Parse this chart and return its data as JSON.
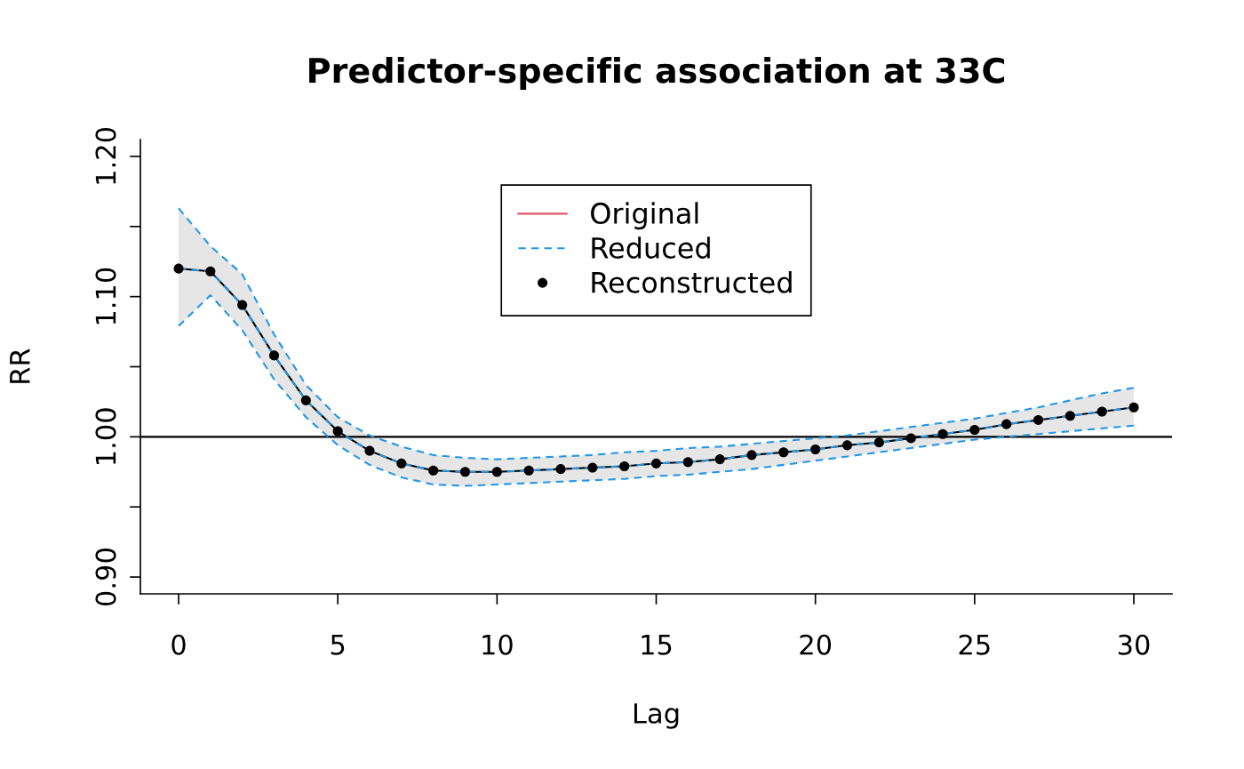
{
  "chart_data": {
    "type": "line",
    "title": "Predictor-specific association at 33C",
    "xlabel": "Lag",
    "ylabel": "RR",
    "x": [
      0,
      1,
      2,
      3,
      4,
      5,
      6,
      7,
      8,
      9,
      10,
      11,
      12,
      13,
      14,
      15,
      16,
      17,
      18,
      19,
      20,
      21,
      22,
      23,
      24,
      25,
      26,
      27,
      28,
      29,
      30
    ],
    "series": [
      {
        "color": "#000000",
        "line_style": "solid",
        "values": [
          1.12,
          1.118,
          1.094,
          1.058,
          1.026,
          1.004,
          0.99,
          0.981,
          0.976,
          0.975,
          0.975,
          0.976,
          0.977,
          0.978,
          0.979,
          0.981,
          0.982,
          0.984,
          0.987,
          0.989,
          0.991,
          0.994,
          0.996,
          0.999,
          1.002,
          1.005,
          1.009,
          1.012,
          1.015,
          1.018,
          1.021
        ],
        "lower": [
          1.079,
          1.101,
          1.076,
          1.041,
          1.014,
          0.994,
          0.98,
          0.971,
          0.966,
          0.965,
          0.966,
          0.967,
          0.968,
          0.969,
          0.97,
          0.972,
          0.973,
          0.975,
          0.977,
          0.98,
          0.983,
          0.986,
          0.989,
          0.992,
          0.995,
          0.998,
          1.0,
          1.002,
          1.004,
          1.006,
          1.008
        ],
        "upper": [
          1.163,
          1.136,
          1.116,
          1.073,
          1.037,
          1.014,
          1.001,
          0.993,
          0.987,
          0.985,
          0.984,
          0.985,
          0.986,
          0.987,
          0.989,
          0.99,
          0.992,
          0.993,
          0.995,
          0.997,
          0.999,
          1.001,
          1.004,
          1.007,
          1.01,
          1.013,
          1.017,
          1.021,
          1.026,
          1.031,
          1.035
        ]
      },
      {
        "name": "Original",
        "color": "#df536b",
        "line_style": "solid",
        "values": [
          null,
          null,
          null,
          null,
          null,
          null,
          null,
          null,
          null,
          null,
          null,
          null,
          null,
          null,
          null,
          null,
          null,
          null,
          null,
          null,
          null,
          null,
          null,
          null,
          null,
          null,
          null,
          null,
          null,
          null,
          null
        ]
      },
      {
        "name": "Reduced",
        "color": "#2297e6",
        "line_style": "dashed",
        "values": [
          1.12,
          1.118,
          1.094,
          1.058,
          1.026,
          1.004,
          0.99,
          0.981,
          0.976,
          0.975,
          0.975,
          0.976,
          0.977,
          0.978,
          0.979,
          0.981,
          0.982,
          0.984,
          0.987,
          0.989,
          0.991,
          0.994,
          0.996,
          0.999,
          1.002,
          1.005,
          1.009,
          1.012,
          1.015,
          1.018,
          1.021
        ]
      },
      {
        "color": "#2297e6",
        "line_style": "dashed",
        "values": [
          1.079,
          1.101,
          1.076,
          1.041,
          1.014,
          0.994,
          0.98,
          0.971,
          0.966,
          0.965,
          0.966,
          0.967,
          0.968,
          0.969,
          0.97,
          0.972,
          0.973,
          0.975,
          0.977,
          0.98,
          0.983,
          0.986,
          0.989,
          0.992,
          0.995,
          0.998,
          1.0,
          1.002,
          1.004,
          1.006,
          1.008
        ]
      },
      {
        "color": "#2297e6",
        "line_style": "dashed",
        "values": [
          1.163,
          1.136,
          1.116,
          1.073,
          1.037,
          1.014,
          1.001,
          0.993,
          0.987,
          0.985,
          0.984,
          0.985,
          0.986,
          0.987,
          0.989,
          0.99,
          0.992,
          0.993,
          0.995,
          0.997,
          0.999,
          1.001,
          1.004,
          1.007,
          1.01,
          1.013,
          1.017,
          1.021,
          1.026,
          1.031,
          1.035
        ]
      },
      {
        "name": "Reconstructed",
        "color": "#000000",
        "type": "scatter",
        "marker": "circle",
        "values": [
          1.12,
          1.118,
          1.094,
          1.058,
          1.026,
          1.004,
          0.99,
          0.981,
          0.976,
          0.975,
          0.975,
          0.976,
          0.977,
          0.978,
          0.979,
          0.981,
          0.982,
          0.984,
          0.987,
          0.989,
          0.991,
          0.994,
          0.996,
          0.999,
          1.002,
          1.005,
          1.009,
          1.012,
          1.015,
          1.018,
          1.021
        ]
      }
    ],
    "ref_lines": [
      {
        "axis": "y",
        "value": 1.0,
        "color": "#000000"
      }
    ],
    "xlim": [
      -1.2,
      31.2
    ],
    "xticks": [
      0,
      5,
      10,
      15,
      20,
      25,
      30
    ],
    "ylim": [
      0.888,
      1.212
    ],
    "yticks": [
      {
        "value": 0.9,
        "label": "0.90"
      },
      {
        "value": 0.95,
        "label": null
      },
      {
        "value": 1.0,
        "label": "1.00"
      },
      {
        "value": 1.05,
        "label": null
      },
      {
        "value": 1.1,
        "label": "1.10"
      },
      {
        "value": 1.15,
        "label": null
      },
      {
        "value": 1.2,
        "label": "1.20"
      }
    ],
    "legend": "top"
  }
}
